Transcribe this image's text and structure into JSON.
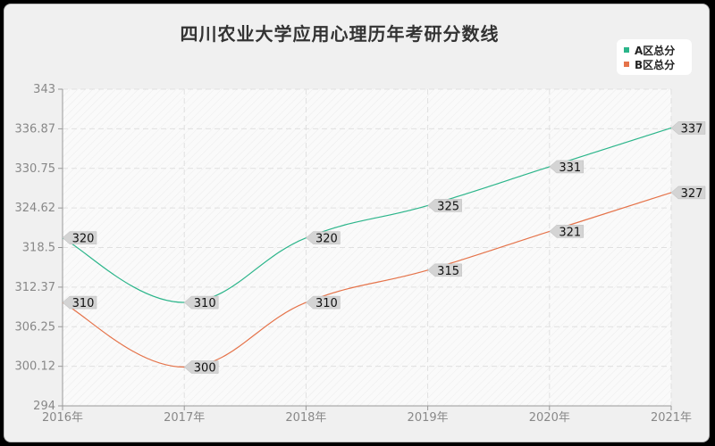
{
  "title": "四川农业大学应用心理历年考研分数线",
  "legend": [
    {
      "name": "A区总分",
      "color": "#2bb58a"
    },
    {
      "name": "B区总分",
      "color": "#e5734a"
    }
  ],
  "chart_data": {
    "type": "line",
    "title": "四川农业大学应用心理历年考研分数线",
    "categories": [
      "2016年",
      "2017年",
      "2018年",
      "2019年",
      "2020年",
      "2021年"
    ],
    "series": [
      {
        "name": "A区总分",
        "color": "#2bb58a",
        "values": [
          320,
          310,
          320,
          325,
          331,
          337
        ]
      },
      {
        "name": "B区总分",
        "color": "#e5734a",
        "values": [
          310,
          300,
          310,
          315,
          321,
          327
        ]
      }
    ],
    "yticks": [
      "343",
      "336.87",
      "330.75",
      "324.62",
      "318.5",
      "312.37",
      "306.25",
      "300.12",
      "294"
    ],
    "ylim": [
      294,
      343
    ],
    "xlabel": "",
    "ylabel": "",
    "grid": true,
    "legend_position": "top-right",
    "smooth": true
  }
}
